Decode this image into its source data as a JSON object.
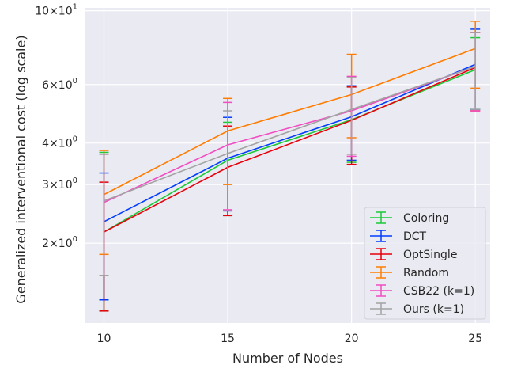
{
  "chart_data": {
    "type": "line",
    "title": "",
    "xlabel": "Number of Nodes",
    "ylabel": "Generalized interventional cost (log scale)",
    "x": [
      10,
      15,
      20,
      25
    ],
    "xlim": [
      9.25,
      25.6
    ],
    "ylim": [
      1.15,
      10.2
    ],
    "yscale": "log",
    "grid": true,
    "legend_position": "lower-right",
    "y_ticks": [
      {
        "value": 2,
        "base": "2",
        "sup": "0"
      },
      {
        "value": 3,
        "base": "3",
        "sup": "0"
      },
      {
        "value": 4,
        "base": "4",
        "sup": "0"
      },
      {
        "value": 6,
        "base": "6",
        "sup": "0"
      },
      {
        "value": 10,
        "base": "10",
        "sup": "1"
      }
    ],
    "x_ticks": [
      "10",
      "15",
      "20",
      "25"
    ],
    "series": [
      {
        "name": "Coloring",
        "color": "#1ac938",
        "values": [
          2.16,
          3.55,
          4.7,
          6.65
        ],
        "lower": [
          1.25,
          2.42,
          3.5,
          5.05
        ],
        "upper": [
          3.75,
          4.62,
          5.9,
          8.3
        ]
      },
      {
        "name": "DCT",
        "color": "#023eff",
        "values": [
          2.32,
          3.6,
          4.8,
          6.9
        ],
        "lower": [
          1.35,
          2.5,
          3.55,
          5.05
        ],
        "upper": [
          3.25,
          4.78,
          5.95,
          8.8
        ]
      },
      {
        "name": "OptSingle",
        "color": "#e8000b",
        "values": [
          2.16,
          3.38,
          4.68,
          6.75
        ],
        "lower": [
          1.25,
          2.42,
          3.45,
          5.0
        ],
        "upper": [
          3.05,
          4.5,
          5.9,
          8.6
        ]
      },
      {
        "name": "Random",
        "color": "#ff7c00",
        "values": [
          2.8,
          4.35,
          5.6,
          7.7
        ],
        "lower": [
          1.85,
          3.0,
          4.15,
          5.85
        ],
        "upper": [
          3.8,
          5.45,
          7.4,
          9.3
        ]
      },
      {
        "name": "CSB22 (k=1)",
        "color": "#f14cc1",
        "values": [
          2.65,
          3.95,
          5.0,
          6.8
        ],
        "lower": [
          1.6,
          2.52,
          3.65,
          5.0
        ],
        "upper": [
          3.7,
          5.3,
          6.35,
          8.6
        ]
      },
      {
        "name": "Ours (k=1)",
        "color": "#a3a3a3",
        "values": [
          2.68,
          3.72,
          5.05,
          6.8
        ],
        "lower": [
          1.6,
          2.5,
          3.7,
          5.05
        ],
        "upper": [
          3.7,
          5.0,
          6.3,
          8.6
        ]
      }
    ]
  }
}
